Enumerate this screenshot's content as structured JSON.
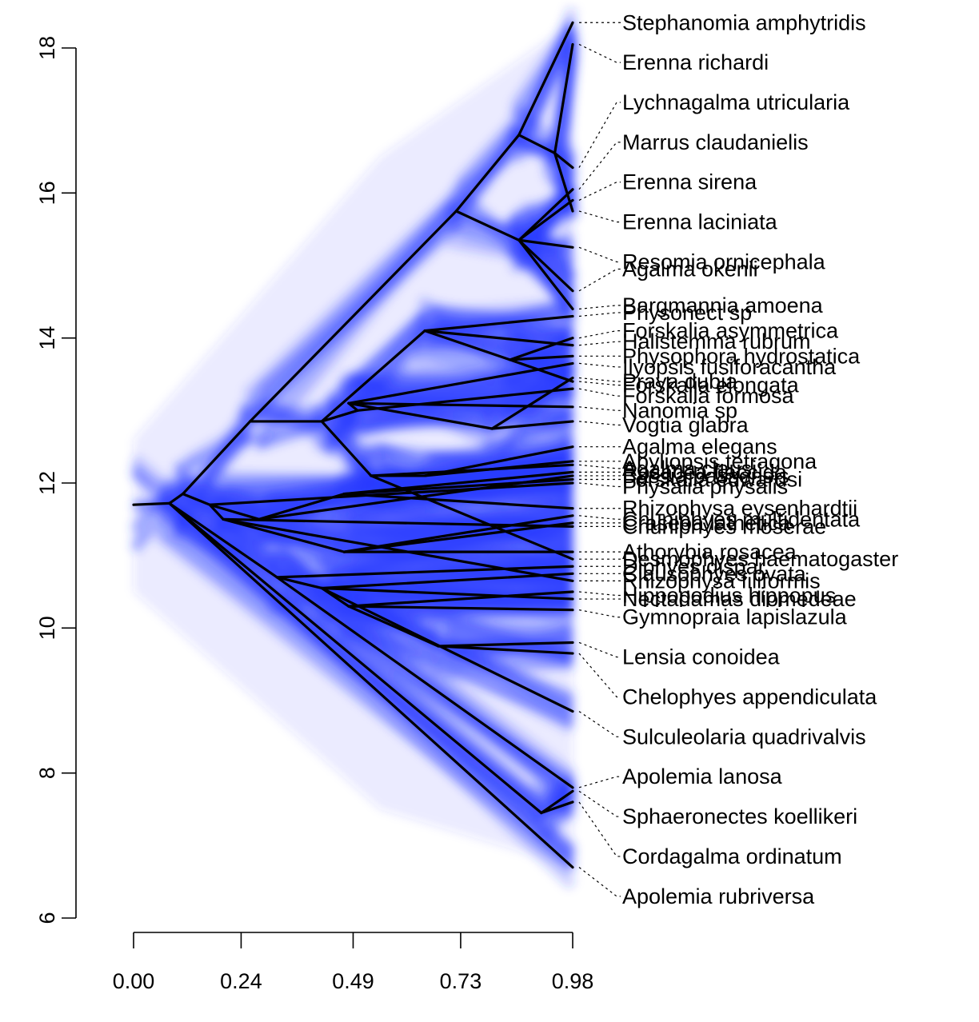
{
  "chart_data": {
    "type": "phenogram",
    "title": "",
    "xlabel": "",
    "ylabel": "",
    "xlim": [
      0,
      0.98
    ],
    "ylim": [
      6,
      18.4
    ],
    "x_ticks": [
      "0.00",
      "0.24",
      "0.49",
      "0.73",
      "0.98"
    ],
    "x_tick_values": [
      0,
      0.24,
      0.49,
      0.73,
      0.98
    ],
    "y_ticks": [
      "6",
      "8",
      "10",
      "12",
      "14",
      "16",
      "18"
    ],
    "y_tick_values": [
      6,
      8,
      10,
      12,
      14,
      16,
      18
    ],
    "colors": {
      "uncertainty_cloud": "#2a3cff",
      "branches": "#000000",
      "axes": "#000000"
    },
    "root": {
      "x": 0,
      "y": 11.7
    },
    "tips": [
      {
        "name": "Stephanomia amphytridis",
        "value": 18.35,
        "label_y": 18.35
      },
      {
        "name": "Erenna richardi",
        "value": 18.05,
        "label_y": 17.8
      },
      {
        "name": "Lychnagalma utricularia",
        "value": 16.35,
        "label_y": 17.25
      },
      {
        "name": "Marrus claudanielis",
        "value": 16.05,
        "label_y": 16.7
      },
      {
        "name": "Erenna sirena",
        "value": 15.9,
        "label_y": 16.15
      },
      {
        "name": "Erenna laciniata",
        "value": 15.75,
        "label_y": 15.6
      },
      {
        "name": "Resomia ornicephala",
        "value": 15.25,
        "label_y": 15.05
      },
      {
        "name": "Agalma okenii",
        "value": 14.65,
        "label_y": 14.95
      },
      {
        "name": "Bargmannia amoena",
        "value": 14.4,
        "label_y": 14.45
      },
      {
        "name": "Physonect sp",
        "value": 14.3,
        "label_y": 14.35
      },
      {
        "name": "Forskalia asymmetrica",
        "value": 14.0,
        "label_y": 14.1
      },
      {
        "name": "Halistemma rubrum",
        "value": 13.9,
        "label_y": 13.95
      },
      {
        "name": "Physophora hydrostatica",
        "value": 13.75,
        "label_y": 13.75
      },
      {
        "name": "Ilyopsis fusiforacantha",
        "value": 13.65,
        "label_y": 13.6
      },
      {
        "name": "Praya dubia",
        "value": 13.45,
        "label_y": 13.4
      },
      {
        "name": "Forskalia elongata",
        "value": 13.4,
        "label_y": 13.35
      },
      {
        "name": "Forskalia formosa",
        "value": 13.3,
        "label_y": 13.2
      },
      {
        "name": "Nanomia sp",
        "value": 13.05,
        "label_y": 13.0
      },
      {
        "name": "Vogtia glabra",
        "value": 12.85,
        "label_y": 12.8
      },
      {
        "name": "Agalma elegans",
        "value": 12.5,
        "label_y": 12.5
      },
      {
        "name": "Abyliopsis tetragona",
        "value": 12.3,
        "label_y": 12.3
      },
      {
        "name": "Agalma clausi",
        "value": 12.25,
        "label_y": 12.2
      },
      {
        "name": "Rosacea flaccida",
        "value": 12.15,
        "label_y": 12.15
      },
      {
        "name": "Bassia bassensis",
        "value": 12.1,
        "label_y": 12.1
      },
      {
        "name": "Forskalia edwardsi",
        "value": 12.05,
        "label_y": 12.05
      },
      {
        "name": "Physalia physalis",
        "value": 12.0,
        "label_y": 11.95
      },
      {
        "name": "Rhizophysa eysenhardtii",
        "value": 11.65,
        "label_y": 11.65
      },
      {
        "name": "Chuniphyes multidentata",
        "value": 11.55,
        "label_y": 11.5
      },
      {
        "name": "Craseoa lathetica",
        "value": 11.45,
        "label_y": 11.45
      },
      {
        "name": "Chuniphyes moserae",
        "value": 11.4,
        "label_y": 11.4
      },
      {
        "name": "Athorybia rosacea",
        "value": 11.05,
        "label_y": 11.05
      },
      {
        "name": "Desmophyes haematogaster",
        "value": 10.95,
        "label_y": 10.95
      },
      {
        "name": "Diphyes dispar",
        "value": 10.85,
        "label_y": 10.85
      },
      {
        "name": "Clausophyes ovata",
        "value": 10.75,
        "label_y": 10.75
      },
      {
        "name": "Rhizophysa filiformis",
        "value": 10.65,
        "label_y": 10.65
      },
      {
        "name": "Hippopodius hippopus",
        "value": 10.5,
        "label_y": 10.45
      },
      {
        "name": "Nectadamas diomedeae",
        "value": 10.4,
        "label_y": 10.4
      },
      {
        "name": "Gymnopraia lapislazula",
        "value": 10.25,
        "label_y": 10.15
      },
      {
        "name": "Lensia conoidea",
        "value": 9.8,
        "label_y": 9.6
      },
      {
        "name": "Chelophyes appendiculata",
        "value": 9.65,
        "label_y": 9.05
      },
      {
        "name": "Sulculeolaria quadrivalvis",
        "value": 8.85,
        "label_y": 8.5
      },
      {
        "name": "Apolemia lanosa",
        "value": 7.8,
        "label_y": 7.95
      },
      {
        "name": "Sphaeronectes koellikeri",
        "value": 7.75,
        "label_y": 7.4
      },
      {
        "name": "Cordagalma ordinatum",
        "value": 7.6,
        "label_y": 6.85
      },
      {
        "name": "Apolemia rubriversa",
        "value": 6.7,
        "label_y": 6.3
      }
    ],
    "nodes": [
      {
        "id": "n1",
        "x": 0.08,
        "y": 11.72,
        "parent": "root"
      },
      {
        "id": "n2",
        "x": 0.11,
        "y": 11.85,
        "parent": "n1"
      },
      {
        "id": "n3",
        "x": 0.17,
        "y": 11.7,
        "parent": "n2"
      },
      {
        "id": "n4",
        "x": 0.2,
        "y": 11.5,
        "parent": "n3"
      },
      {
        "id": "n5",
        "x": 0.26,
        "y": 12.85,
        "parent": "n2"
      },
      {
        "id": "n6",
        "x": 0.42,
        "y": 12.85,
        "parent": "n5"
      },
      {
        "id": "n7",
        "x": 0.5,
        "y": 13.0,
        "parent": "n6"
      },
      {
        "id": "n8",
        "x": 0.72,
        "y": 15.75,
        "parent": "n5"
      },
      {
        "id": "n9",
        "x": 0.86,
        "y": 16.8,
        "parent": "n8"
      },
      {
        "id": "n10",
        "x": 0.94,
        "y": 16.55,
        "parent": "n9"
      },
      {
        "id": "n11",
        "x": 0.86,
        "y": 15.35,
        "parent": "n8"
      },
      {
        "id": "n12",
        "x": 0.65,
        "y": 14.1,
        "parent": "n6"
      },
      {
        "id": "n13",
        "x": 0.84,
        "y": 13.7,
        "parent": "n12"
      },
      {
        "id": "n14",
        "x": 0.48,
        "y": 13.1,
        "parent": "n7"
      },
      {
        "id": "n15",
        "x": 0.8,
        "y": 12.75,
        "parent": "n14"
      },
      {
        "id": "n16",
        "x": 0.53,
        "y": 12.1,
        "parent": "n6"
      },
      {
        "id": "n17",
        "x": 0.65,
        "y": 12.1,
        "parent": "n16"
      },
      {
        "id": "n18",
        "x": 0.28,
        "y": 11.5,
        "parent": "n3"
      },
      {
        "id": "n19",
        "x": 0.47,
        "y": 11.85,
        "parent": "n18"
      },
      {
        "id": "n20",
        "x": 0.47,
        "y": 11.05,
        "parent": "n4"
      },
      {
        "id": "n21",
        "x": 0.32,
        "y": 10.7,
        "parent": "n1"
      },
      {
        "id": "n22",
        "x": 0.42,
        "y": 10.55,
        "parent": "n21"
      },
      {
        "id": "n23",
        "x": 0.48,
        "y": 10.3,
        "parent": "n22"
      },
      {
        "id": "n24",
        "x": 0.68,
        "y": 9.75,
        "parent": "n23"
      },
      {
        "id": "n25",
        "x": 0.91,
        "y": 7.45,
        "parent": "n1"
      }
    ]
  }
}
